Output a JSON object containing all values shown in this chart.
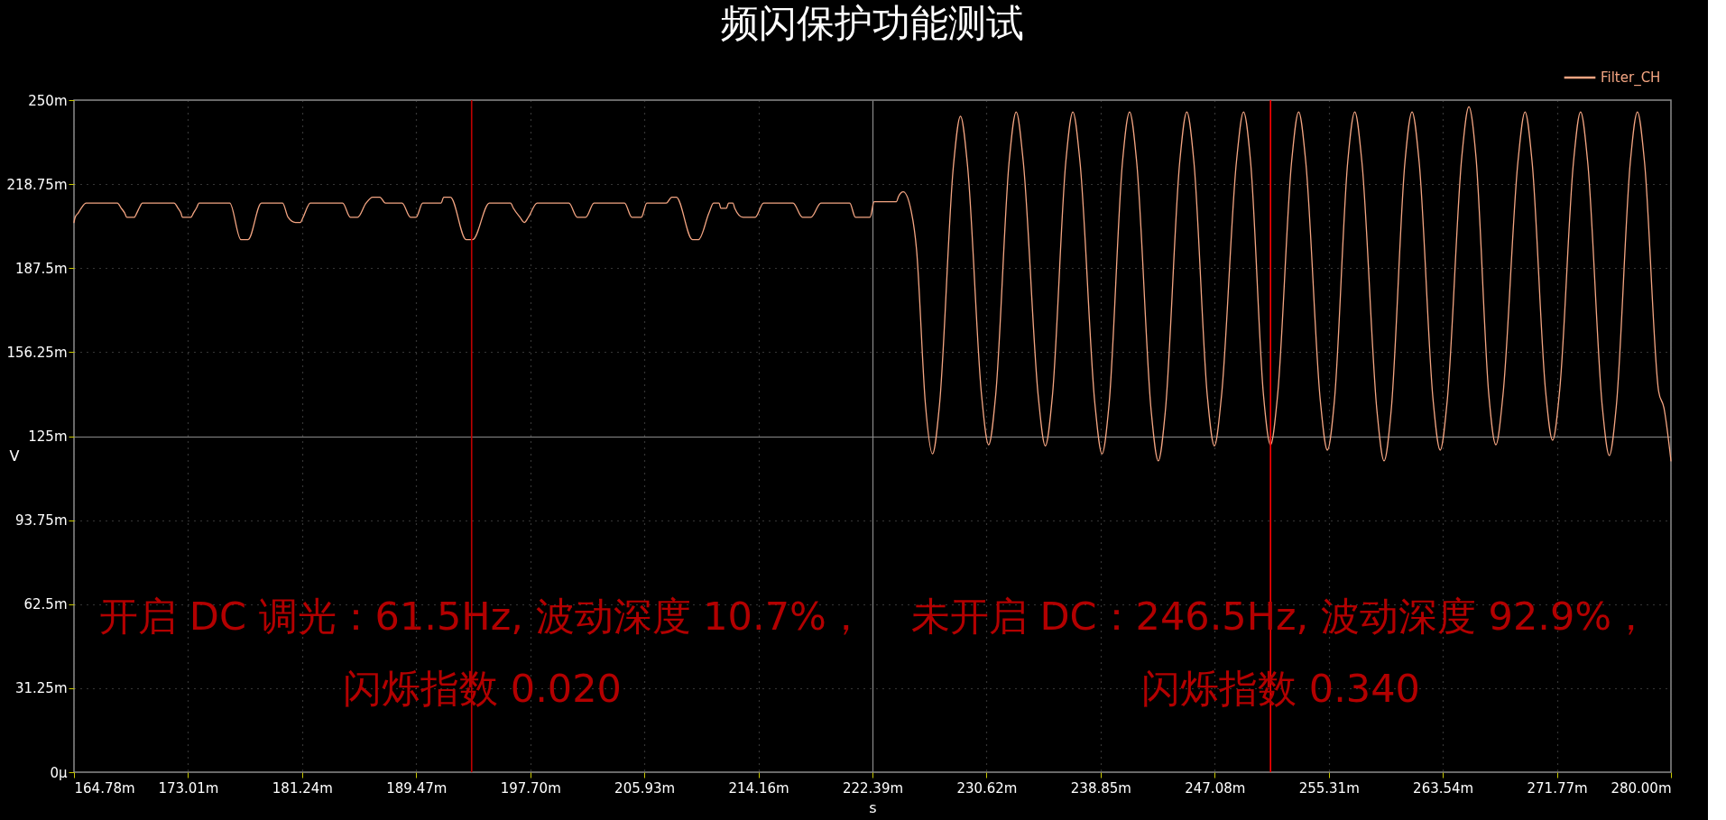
{
  "chart_data": {
    "type": "line",
    "title": "频闪保护功能测试",
    "xlabel": "s",
    "ylabel": "V",
    "xlim": [
      164.78,
      280
    ],
    "ylim": [
      0,
      250
    ],
    "xticks": [
      {
        "value": 164.78,
        "label": "164.78m"
      },
      {
        "value": 173.01,
        "label": "173.01m"
      },
      {
        "value": 181.24,
        "label": "181.24m"
      },
      {
        "value": 189.47,
        "label": "189.47m"
      },
      {
        "value": 197.7,
        "label": "197.70m"
      },
      {
        "value": 205.93,
        "label": "205.93m"
      },
      {
        "value": 214.16,
        "label": "214.16m"
      },
      {
        "value": 222.39,
        "label": "222.39m"
      },
      {
        "value": 230.62,
        "label": "230.62m"
      },
      {
        "value": 238.85,
        "label": "238.85m"
      },
      {
        "value": 247.08,
        "label": "247.08m"
      },
      {
        "value": 255.31,
        "label": "255.31m"
      },
      {
        "value": 263.54,
        "label": "263.54m"
      },
      {
        "value": 271.77,
        "label": "271.77m"
      },
      {
        "value": 280,
        "label": "280.00m"
      }
    ],
    "yticks": [
      {
        "value": 0,
        "label": "0μ"
      },
      {
        "value": 31.25,
        "label": "31.25m"
      },
      {
        "value": 62.5,
        "label": "62.5m"
      },
      {
        "value": 93.75,
        "label": "93.75m"
      },
      {
        "value": 125,
        "label": "125m"
      },
      {
        "value": 156.25,
        "label": "156.25m"
      },
      {
        "value": 187.5,
        "label": "187.5m"
      },
      {
        "value": 218.75,
        "label": "218.75m"
      },
      {
        "value": 250,
        "label": "250m"
      }
    ],
    "grid": true,
    "legend": "top right",
    "series": [
      {
        "name": "Filter_CH",
        "color": "#f4a582",
        "x": [
          164.78,
          164.86,
          165.1,
          165.3,
          165.66,
          167.91,
          168.19,
          168.43,
          168.59,
          169.12,
          169.32,
          169.48,
          169.72,
          172.0,
          172.29,
          172.49,
          172.61,
          173.21,
          173.41,
          173.61,
          173.81,
          176.02,
          176.82,
          177.34,
          178.3,
          179.83,
          180.23,
          180.75,
          181.11,
          181.31,
          181.83,
          184.16,
          184.72,
          185.24,
          185.85,
          186.33,
          186.85,
          187.25,
          188.45,
          189.06,
          189.46,
          189.94,
          191.26,
          191.46,
          191.94,
          193.07,
          193.55,
          194.75,
          196.28,
          196.48,
          196.96,
          197.28,
          197.56,
          198.2,
          200.49,
          201.09,
          201.7,
          202.3,
          204.5,
          205.03,
          205.71,
          206.11,
          207.51,
          207.91,
          208.24,
          209.4,
          209.84,
          210.6,
          210.92,
          211.32,
          211.45,
          211.85,
          212.01,
          212.33,
          212.45,
          213.05,
          213.93,
          214.53,
          216.66,
          217.34,
          217.95,
          218.67,
          220.75,
          221.16,
          222.21,
          222.51,
          224.12,
          224.27,
          224.61,
          225.19,
          225.57,
          226.21,
          226.72,
          227.23,
          228.23,
          228.74,
          229.25,
          230.26,
          230.77,
          231.28,
          232.25,
          232.76,
          233.27,
          234.35,
          234.86,
          235.37,
          236.34,
          236.85,
          237.36,
          238.44,
          238.95,
          239.46,
          240.43,
          240.94,
          241.45,
          242.5,
          243.01,
          243.52,
          244.56,
          245.07,
          245.58,
          246.55,
          247.06,
          247.57,
          248.65,
          249.16,
          249.67,
          250.6,
          251.11,
          251.62,
          252.63,
          253.14,
          253.65,
          254.7,
          255.21,
          255.72,
          256.68,
          257.19,
          257.7,
          258.79,
          259.3,
          259.81,
          260.81,
          261.32,
          261.83,
          262.84,
          263.35,
          263.86,
          264.91,
          265.42,
          265.93,
          266.86,
          267.37,
          267.88,
          268.96,
          269.47,
          269.98,
          270.95,
          271.46,
          271.97,
          272.97,
          273.48,
          273.99,
          275.04,
          275.55,
          276.06,
          277.07,
          277.58,
          278.09,
          279.11,
          279.49,
          280.0
        ],
        "values": [
          204.5,
          206.4,
          208.1,
          209.8,
          211.7,
          211.7,
          209.8,
          208.1,
          206.4,
          206.4,
          208.1,
          209.8,
          211.7,
          211.7,
          209.8,
          208.1,
          206.4,
          206.4,
          208.1,
          209.8,
          211.7,
          211.7,
          198.1,
          198.1,
          211.7,
          211.7,
          206.4,
          204.5,
          204.5,
          206.4,
          211.7,
          211.7,
          206.4,
          206.4,
          211.7,
          213.9,
          213.9,
          211.7,
          211.7,
          206.4,
          206.4,
          211.7,
          211.7,
          213.9,
          213.9,
          198.1,
          198.1,
          211.7,
          211.7,
          209.8,
          206.4,
          204.5,
          206.4,
          211.7,
          211.7,
          206.4,
          206.4,
          211.7,
          211.7,
          206.4,
          206.4,
          211.7,
          211.7,
          213.9,
          213.9,
          198.1,
          198.1,
          208.1,
          211.7,
          211.7,
          209.8,
          209.8,
          211.7,
          211.7,
          209.8,
          206.4,
          206.4,
          211.7,
          211.7,
          206.4,
          206.4,
          211.7,
          211.7,
          206.4,
          206.4,
          212.2,
          212.2,
          214.2,
          215.9,
          208.6,
          194.4,
          136.9,
          118.4,
          136.9,
          225.5,
          244.0,
          225.5,
          140.3,
          121.8,
          140.3,
          227.1,
          245.6,
          227.1,
          139.9,
          121.4,
          139.9,
          227.1,
          245.6,
          227.1,
          136.9,
          118.4,
          136.9,
          227.1,
          245.6,
          227.1,
          134.3,
          115.8,
          134.3,
          227.1,
          245.6,
          227.1,
          139.9,
          121.4,
          139.9,
          227.1,
          245.6,
          227.1,
          140.3,
          121.8,
          140.3,
          227.1,
          245.6,
          227.1,
          138.3,
          119.8,
          138.3,
          227.1,
          245.6,
          227.1,
          134.3,
          115.8,
          134.3,
          227.1,
          245.6,
          227.1,
          138.3,
          119.8,
          138.3,
          229.0,
          247.5,
          229.0,
          140.3,
          121.8,
          140.3,
          227.1,
          245.6,
          227.1,
          142.0,
          123.5,
          142.0,
          227.1,
          245.6,
          227.1,
          136.3,
          117.8,
          136.3,
          227.1,
          245.6,
          227.1,
          141.7,
          135.6,
          115.8
        ]
      }
    ],
    "ref_lines": [
      {
        "axis": "x",
        "value": 193.47,
        "color": "#c00000"
      },
      {
        "axis": "x",
        "value": 251.11,
        "color": "#ff0000"
      }
    ],
    "annotations": [
      "开启 DC 调光：61.5Hz, 波动深度 10.7%，闪烁指数 0.020",
      "未开启 DC：246.5Hz, 波动深度 92.9%，闪烁指数 0.340"
    ]
  }
}
